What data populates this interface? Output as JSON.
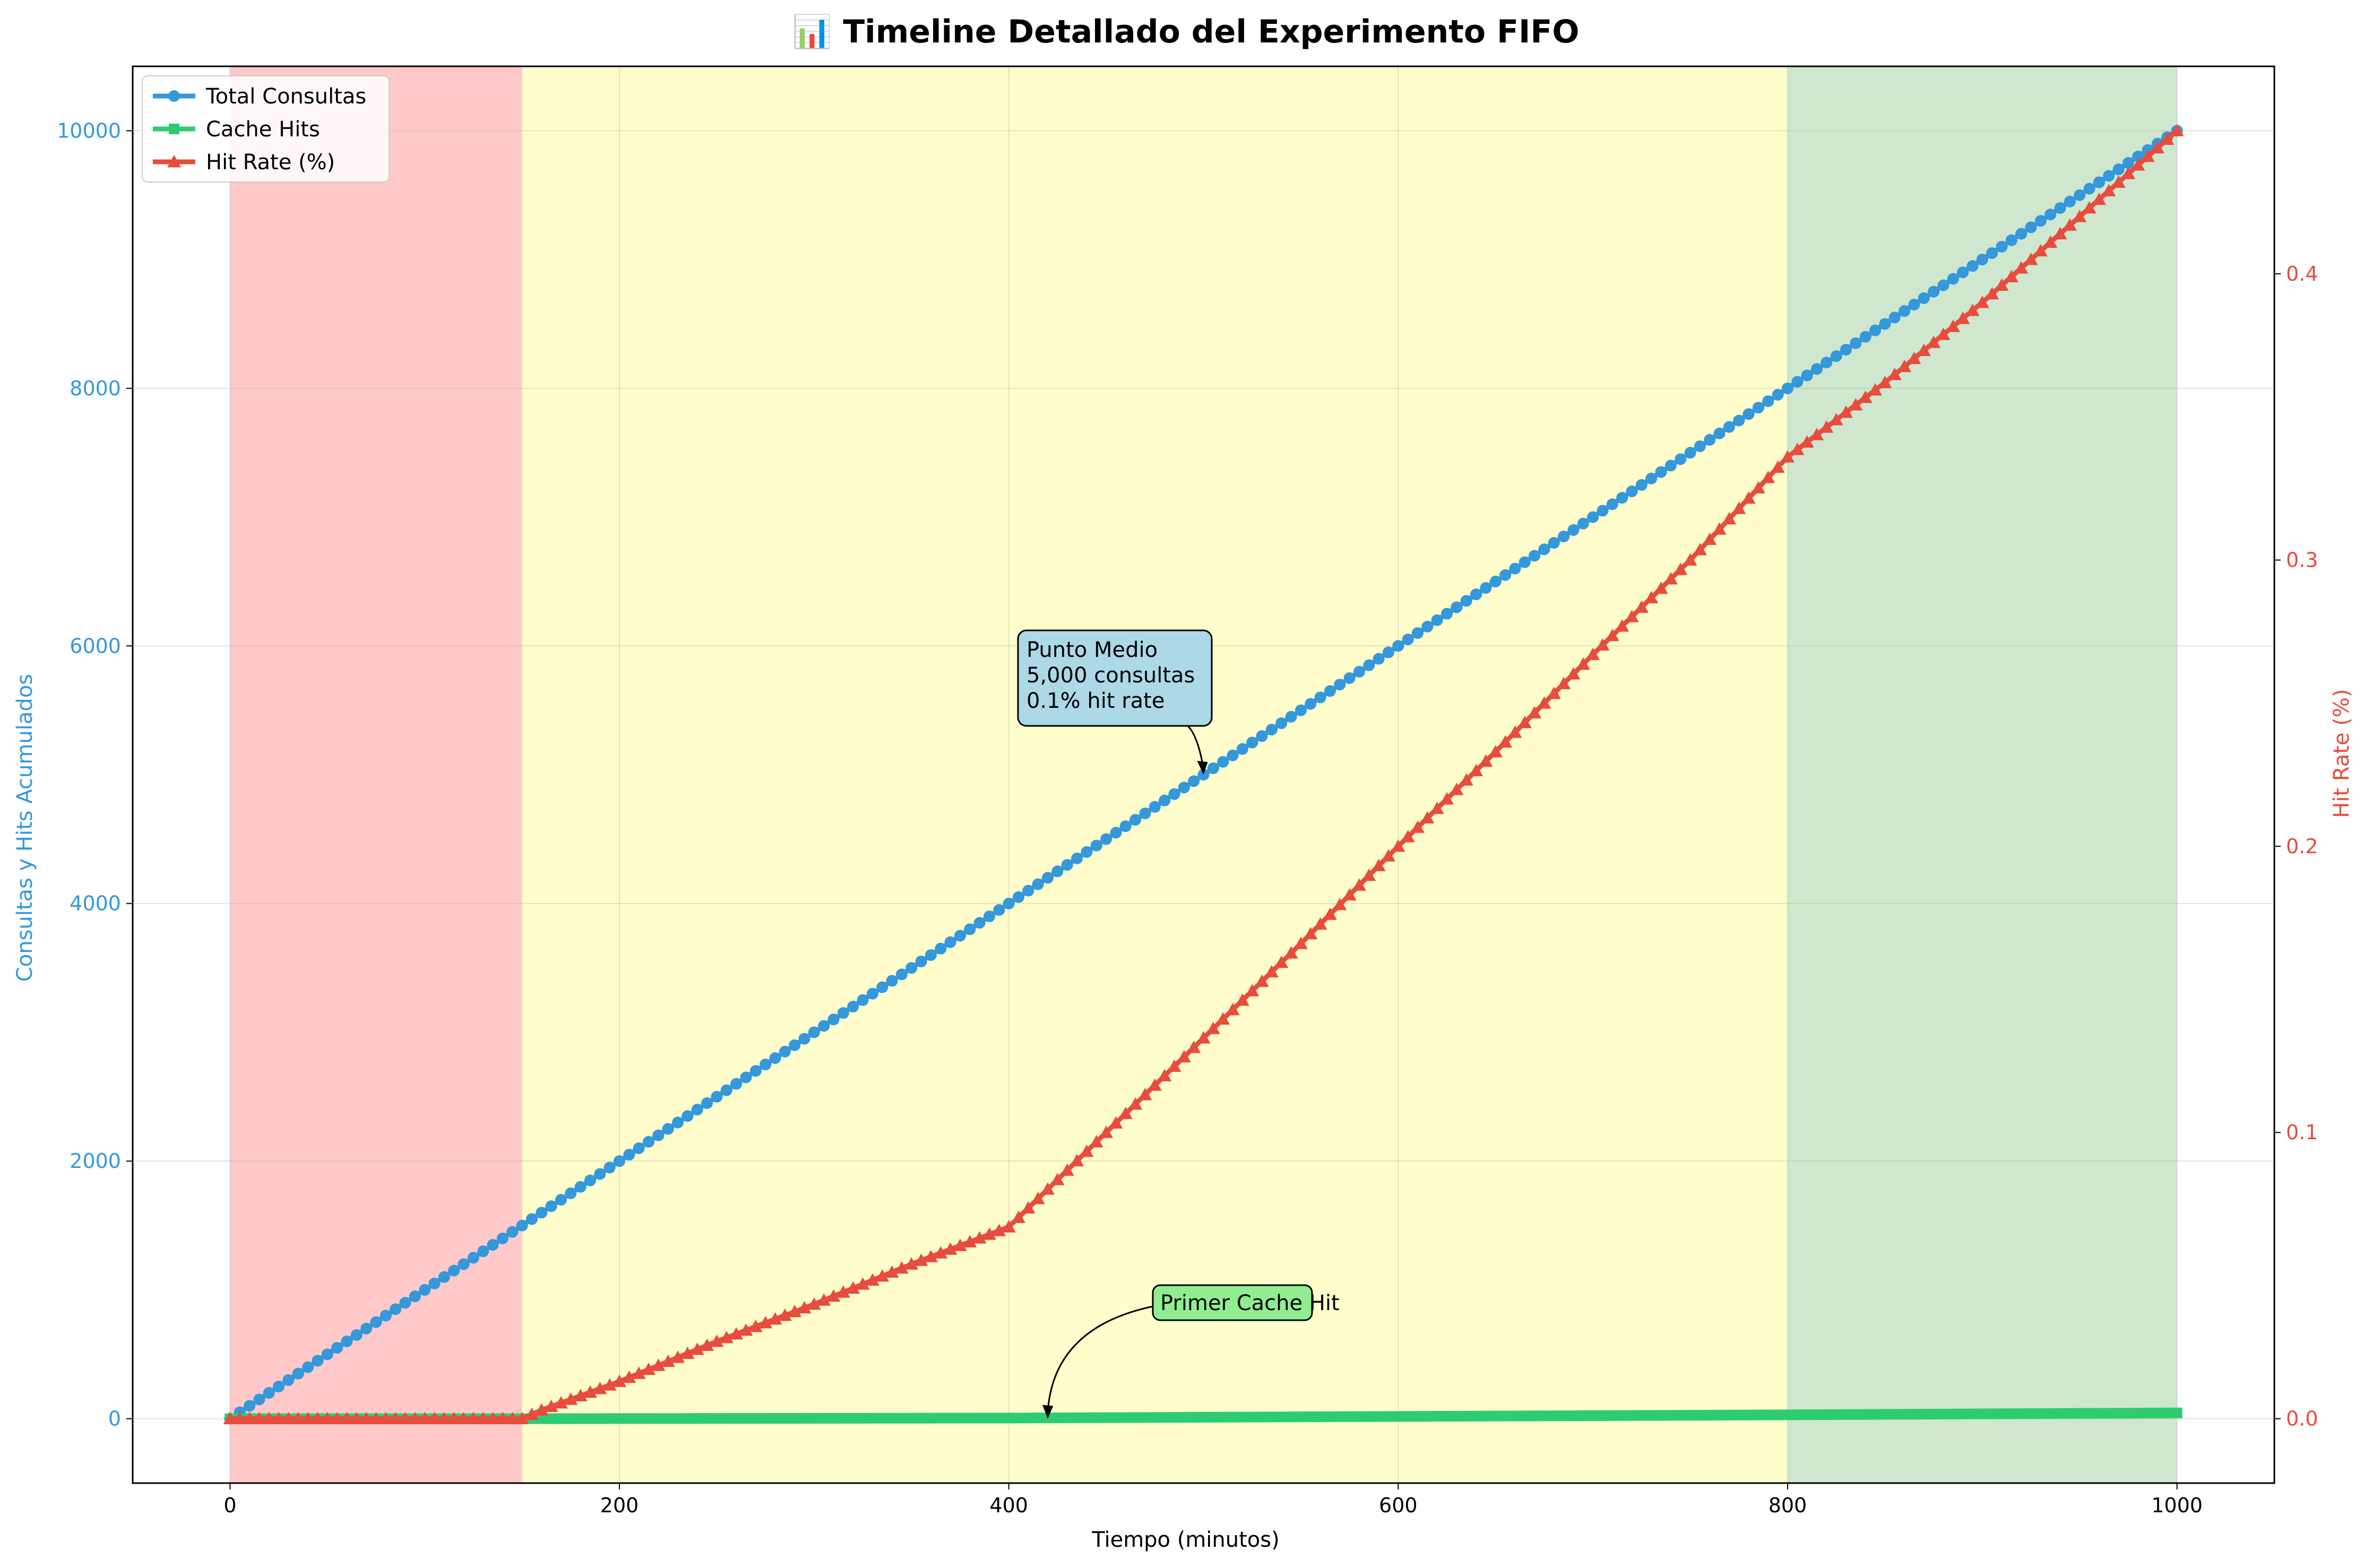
{
  "chart_data": {
    "type": "line",
    "title": "📊 Timeline Detallado del Experimento FIFO",
    "xlabel": "Tiempo (minutos)",
    "ylabel_left": "Consultas y Hits Acumulados",
    "ylabel_right": "Hit Rate (%)",
    "xlim": [
      -50,
      1050
    ],
    "ylim_left": [
      -500,
      10500
    ],
    "ylim_right": [
      -0.0225,
      0.4725
    ],
    "xticks": [
      0,
      200,
      400,
      600,
      800,
      1000
    ],
    "yticks_left": [
      0,
      2000,
      4000,
      6000,
      8000,
      10000
    ],
    "yticks_right": [
      0.0,
      0.1,
      0.2,
      0.3,
      0.4
    ],
    "xtick_labels": [
      "0",
      "200",
      "400",
      "600",
      "800",
      "1000"
    ],
    "ytick_left_labels": [
      "0",
      "2000",
      "4000",
      "6000",
      "8000",
      "10000"
    ],
    "ytick_right_labels": [
      "0.0",
      "0.1",
      "0.2",
      "0.3",
      "0.4"
    ],
    "grid": true,
    "legend_position": "upper left",
    "phases": [
      {
        "x_start": 0,
        "x_end": 150,
        "color": "#ff9c9c"
      },
      {
        "x_start": 150,
        "x_end": 800,
        "color": "#fdfba0"
      },
      {
        "x_start": 800,
        "x_end": 1000,
        "color": "#a6d4a6"
      }
    ],
    "series": [
      {
        "name": "Total Consultas",
        "axis": "left",
        "color": "#3498db",
        "marker": "circle",
        "x": [
          0,
          1000
        ],
        "y": [
          0,
          10000
        ]
      },
      {
        "name": "Cache Hits",
        "axis": "left",
        "color": "#2ecc71",
        "marker": "square",
        "x": [
          0,
          150,
          400,
          800,
          1000
        ],
        "y": [
          0,
          0,
          5,
          30,
          45
        ]
      },
      {
        "name": "Hit Rate (%)",
        "axis": "right",
        "color": "#e74c3c",
        "marker": "triangle",
        "x": [
          0,
          150,
          160,
          200,
          250,
          300,
          350,
          400,
          450,
          500,
          550,
          600,
          650,
          700,
          750,
          800,
          850,
          900,
          950,
          1000
        ],
        "y": [
          0,
          0,
          0.003,
          0.013,
          0.027,
          0.04,
          0.054,
          0.067,
          0.1,
          0.133,
          0.166,
          0.2,
          0.233,
          0.267,
          0.3,
          0.336,
          0.362,
          0.39,
          0.42,
          0.45
        ]
      }
    ],
    "annotations": [
      {
        "lines": [
          "Punto Medio",
          "5,000 consultas",
          "0.1% hit rate"
        ],
        "point_x": 500,
        "point_y": 5000,
        "box_color": "#add8e6"
      },
      {
        "lines": [
          "Primer Cache Hit"
        ],
        "point_x": 420,
        "point_y": 0,
        "box_color": "#90ee90"
      }
    ]
  }
}
